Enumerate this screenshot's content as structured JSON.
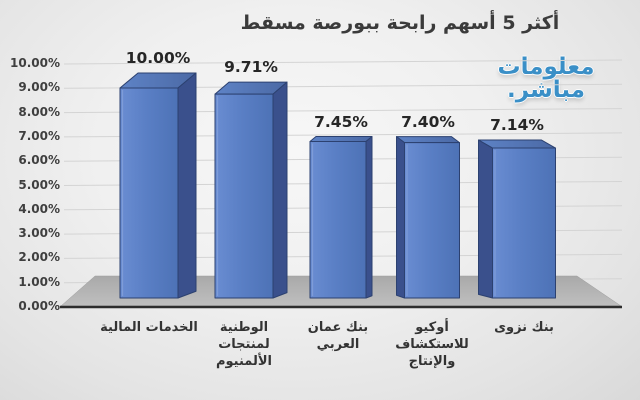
{
  "title": "أكثر 5 أسهم رابحة ببورصة مسقط",
  "watermark": {
    "line1": "معلومات",
    "line2": "مباشر.",
    "color": "#3a8fc7"
  },
  "chart_data": {
    "type": "bar",
    "style": "3d-column",
    "title": "أكثر 5 أسهم رابحة ببورصة مسقط",
    "categories": [
      "الخدمات المالية",
      "الوطنية لمنتجات الألمنيوم",
      "بنك عمان العربي",
      "أوكيو للاستكشاف والإنتاج",
      "بنك نزوى"
    ],
    "category_display_lines": [
      [
        "الخدمات المالية"
      ],
      [
        "الوطنية",
        "لمنتجات",
        "الألمنيوم"
      ],
      [
        "بنك عمان",
        "العربي"
      ],
      [
        "أوكيو",
        "للاستكشاف",
        "والإنتاج"
      ],
      [
        "بنك نزوى"
      ]
    ],
    "values": [
      10.0,
      9.71,
      7.45,
      7.4,
      7.14
    ],
    "value_labels": [
      "10.00%",
      "9.71%",
      "7.45%",
      "7.40%",
      "7.14%"
    ],
    "unit": "%",
    "y_ticks": [
      "0.00%",
      "1.00%",
      "2.00%",
      "3.00%",
      "4.00%",
      "5.00%",
      "6.00%",
      "7.00%",
      "8.00%",
      "9.00%",
      "10.00%"
    ],
    "ylim": [
      0,
      10
    ],
    "grid": true,
    "legend": false,
    "xlabel": "",
    "ylabel": "",
    "bar_front_color": "#5b80c6",
    "bar_side_color": "#3a508c",
    "bar_edge_color": "#2c4170",
    "floor_color": "#b2b2b2",
    "gridline_color": "#d4d4d4",
    "axis_line_color": "#2d2d2d"
  }
}
